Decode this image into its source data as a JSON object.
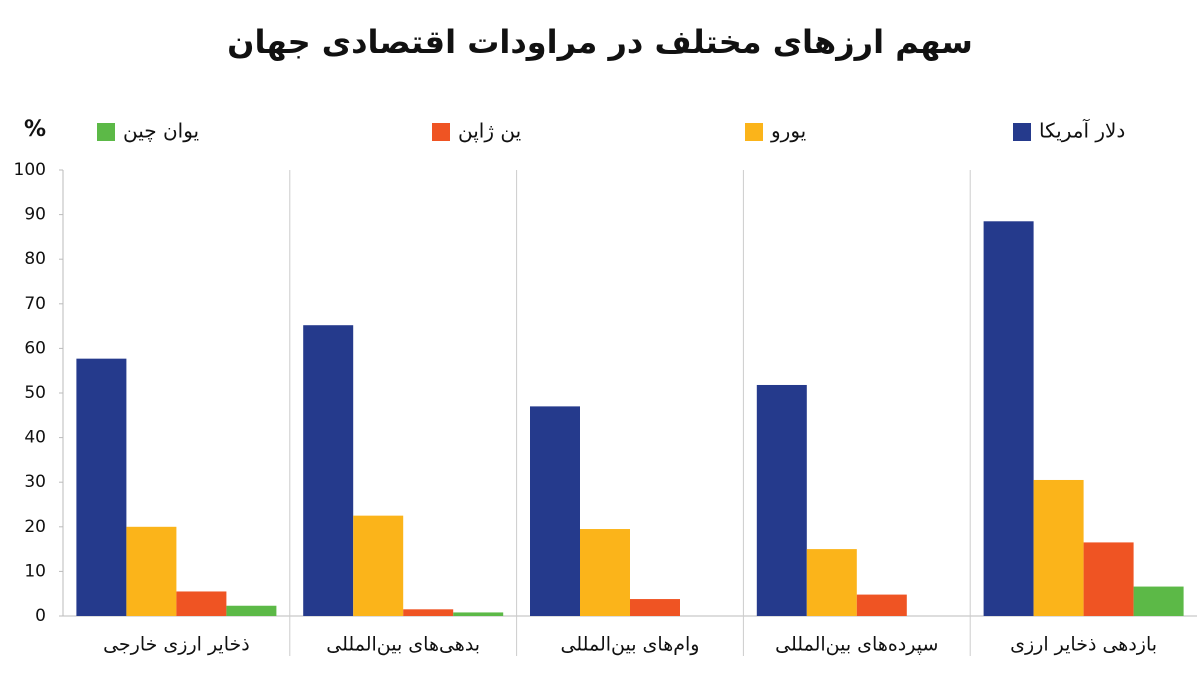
{
  "chart_data": {
    "type": "bar",
    "title": "سهم ارزهای مختلف در  مراودات اقتصادی جهان",
    "y_label": "%",
    "categories": [
      "ذخایر ارزی خارجی",
      "بدهی‌های بین‌المللی",
      "وام‌های بین‌المللی",
      "سپرده‌های بین‌المللی",
      "بازدهی ذخایر ارزی"
    ],
    "series": [
      {
        "name": "دلار آمریکا",
        "color": "#253a8c",
        "values": [
          57.7,
          65.2,
          47,
          51.8,
          88.5
        ]
      },
      {
        "name": "یورو",
        "color": "#fbb41a",
        "values": [
          20,
          22.5,
          19.5,
          15,
          30.5
        ]
      },
      {
        "name": "ین ژاپن",
        "color": "#ef5423",
        "values": [
          5.5,
          1.5,
          3.8,
          4.8,
          16.5
        ]
      },
      {
        "name": "یوان چین",
        "color": "#5cb947",
        "values": [
          2.3,
          0.8,
          0,
          0,
          6.6
        ]
      }
    ],
    "ylim": [
      0,
      100
    ],
    "yticks": [
      0,
      10,
      20,
      30,
      40,
      50,
      60,
      70,
      80,
      90,
      100
    ]
  }
}
